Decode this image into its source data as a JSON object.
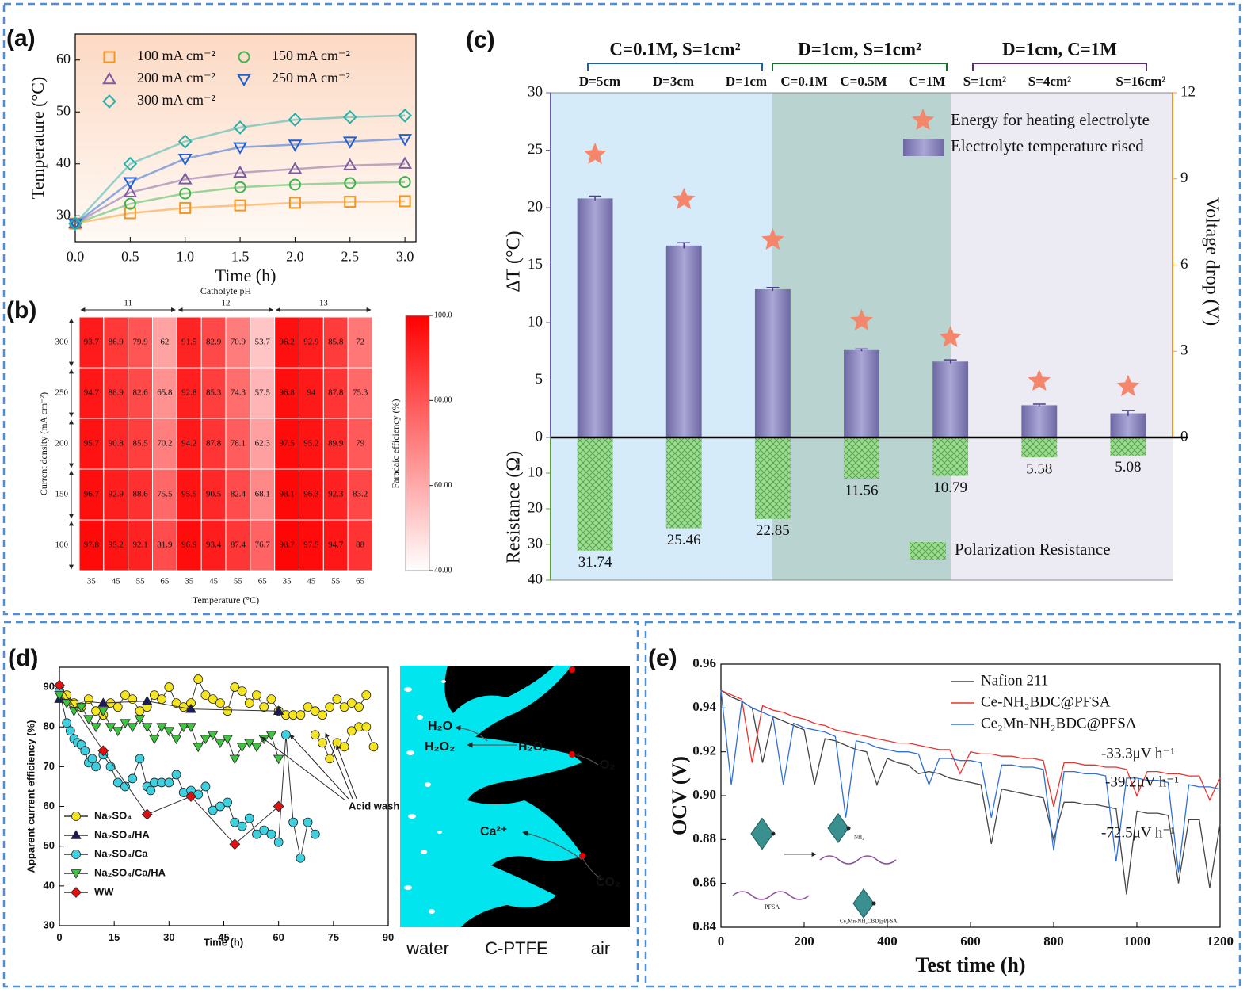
{
  "panel_labels": [
    "(a)",
    "(b)",
    "(c)",
    "(d)",
    "(e)"
  ],
  "chart_data": [
    {
      "type": "line",
      "xlabel": "Time (h)",
      "ylabel": "Temperature (°C)",
      "x": [
        0,
        0.5,
        1,
        1.5,
        2,
        2.5,
        3
      ],
      "xlim": [
        0,
        3.1
      ],
      "xticks": [
        {
          "value": 0,
          "label": "0.0"
        },
        0.5,
        {
          "value": 1,
          "label": "1.0"
        },
        1.5,
        {
          "value": 2,
          "label": "2.0"
        },
        2.5,
        {
          "value": 3,
          "label": "3.0"
        }
      ],
      "ylim": [
        25,
        65
      ],
      "yticks": [
        30,
        40,
        50,
        60
      ],
      "legend": "upper left",
      "series": [
        {
          "name": "100 mA cm⁻²",
          "color": "#f7941d",
          "marker": "square",
          "values": [
            28.5,
            30.5,
            31.5,
            32,
            32.5,
            32.7,
            32.8
          ]
        },
        {
          "name": "150 mA cm⁻²",
          "color": "#3cb44b",
          "marker": "circle",
          "values": [
            28.5,
            32.3,
            34.3,
            35.5,
            36,
            36.3,
            36.5
          ]
        },
        {
          "name": "200 mA cm⁻²",
          "color": "#7b5c9e",
          "marker": "triangle",
          "values": [
            28.5,
            34.5,
            37,
            38.3,
            39,
            39.7,
            40
          ]
        },
        {
          "name": "250 mA cm⁻²",
          "color": "#1f5fd1",
          "marker": "triangle-down",
          "values": [
            28.5,
            36.5,
            41,
            43.2,
            43.7,
            44.3,
            44.8
          ]
        },
        {
          "name": "300 mA cm⁻²",
          "color": "#2ab0a8",
          "marker": "diamond",
          "values": [
            28.5,
            40,
            44.3,
            47,
            48.5,
            49,
            49.3
          ]
        }
      ]
    },
    {
      "type": "heatmap",
      "title": "Catholyte pH",
      "xlabel": "Temperature (°C)",
      "ylabel": "Current density (mA cm⁻²)",
      "zlabel": "Faradaic efficiency (%)",
      "groups": [
        "11",
        "12",
        "13"
      ],
      "categories": [
        35,
        45,
        55,
        65,
        35,
        45,
        55,
        65,
        35,
        45,
        55,
        65
      ],
      "rows": [
        300,
        250,
        200,
        150,
        100
      ],
      "values": [
        [
          93.7,
          86.9,
          79.9,
          62,
          91.5,
          82.9,
          70.9,
          53.7,
          96.2,
          92.9,
          85.8,
          72
        ],
        [
          94.7,
          88.9,
          82.6,
          65.8,
          92.8,
          85.3,
          74.3,
          57.5,
          96.8,
          94,
          87.8,
          75.3
        ],
        [
          95.7,
          90.8,
          85.5,
          70.2,
          94.2,
          87.8,
          78.1,
          62.3,
          97.5,
          95.2,
          89.9,
          79
        ],
        [
          96.7,
          92.9,
          88.6,
          75.5,
          95.5,
          90.5,
          82.4,
          68.1,
          98.1,
          96.3,
          92.3,
          83.2
        ],
        [
          97.8,
          95.2,
          92.1,
          81.9,
          96.9,
          93.4,
          87.4,
          76.7,
          98.7,
          97.5,
          94.7,
          88
        ]
      ],
      "zlim": [
        40,
        100
      ],
      "zticks": [
        {
          "value": 40,
          "label": "40.00"
        },
        {
          "value": 60,
          "label": "60.00"
        },
        {
          "value": 80,
          "label": "80.00"
        },
        {
          "value": 100,
          "label": "100.0"
        }
      ],
      "colormap": [
        "#ffffff",
        "#ff0000"
      ]
    },
    {
      "type": "bar",
      "ylabel": "ΔT (°C)",
      "y2label": "Voltage drop (V)",
      "y3label": "Resistance (Ω)",
      "groups": [
        {
          "label": "C=0.1M, S=1cm²",
          "color": "#1f5fa8"
        },
        {
          "label": "D=1cm, S=1cm²",
          "color": "#1a6b2e"
        },
        {
          "label": "D=1cm, C=1M",
          "color": "#5a2d6e"
        }
      ],
      "column_labels": [
        "D=5cm",
        "D=3cm",
        "D=1cm",
        "C=0.1M",
        "C=0.5M",
        "C=1M",
        "S=1cm²",
        "S=4cm²",
        "S=16cm²"
      ],
      "ylim": [
        0,
        30
      ],
      "yticks": [
        0,
        5,
        10,
        15,
        20,
        25,
        30
      ],
      "y2lim": [
        0,
        12
      ],
      "y2ticks": [
        0,
        3,
        6,
        9,
        12
      ],
      "y3lim": [
        0,
        40
      ],
      "y3ticks": [
        10,
        20,
        30,
        40
      ],
      "series": [
        {
          "name": "Energy for heating electrolyte",
          "color": "#f4876b",
          "marker": "star",
          "axis": "y2",
          "values": [
            9.85,
            8.28,
            6.87,
            4.06,
            3.48,
            1.96,
            1.77
          ]
        },
        {
          "name": "Electrolyte temperature rised",
          "color": "#8b87b8",
          "values": [
            20.8,
            16.7,
            12.9,
            7.6,
            6.6,
            2.8,
            2.1
          ],
          "errors": [
            0.2,
            0.25,
            0.15,
            0.1,
            0.15,
            0.1,
            0.25
          ]
        },
        {
          "name": "Polarization Resistance",
          "color": "#8fd18f",
          "axis": "y3",
          "values": [
            31.74,
            25.46,
            22.85,
            11.56,
            10.79,
            5.58,
            5.08
          ]
        }
      ]
    },
    {
      "type": "line",
      "xlabel": "Time (h)",
      "ylabel": "Apparent current efficiency (%)",
      "xlim": [
        0,
        90
      ],
      "xticks": [
        0,
        15,
        30,
        45,
        60,
        75,
        90
      ],
      "ylim": [
        30,
        95
      ],
      "yticks": [
        30,
        40,
        50,
        60,
        70,
        80,
        90
      ],
      "legend": "lower left",
      "annotation": "Acid wash",
      "series": [
        {
          "name": "Na₂SO₄",
          "color": "#f5e520",
          "line_color": "#333333",
          "marker": "circle",
          "x": [
            0,
            2,
            4,
            6,
            8,
            10,
            12,
            14,
            16,
            18,
            20,
            22,
            24,
            26,
            28,
            30,
            32,
            34,
            36,
            38,
            40,
            42,
            44,
            46,
            48,
            50,
            52,
            54,
            56,
            58,
            60,
            62,
            64,
            66,
            68,
            70,
            72,
            74,
            76,
            78,
            80,
            82,
            84,
            null,
            70,
            72,
            74,
            76,
            78,
            80,
            82,
            84,
            86
          ],
          "values": [
            89,
            88,
            86,
            85,
            87,
            84,
            83,
            86,
            85,
            88,
            87,
            84,
            85,
            88,
            87,
            90,
            86,
            85,
            86,
            92,
            88,
            87,
            86,
            84,
            90,
            89,
            86,
            88,
            85,
            87,
            84,
            83,
            83,
            83,
            85,
            84,
            83,
            85,
            87,
            85,
            86,
            85,
            88,
            null,
            78,
            76,
            72,
            76,
            75,
            79,
            80,
            80,
            75
          ]
        },
        {
          "name": "Na₂SO₄/HA",
          "color": "#1a1a5e",
          "line_color": "#333333",
          "marker": "triangle",
          "x": [
            0,
            12,
            24,
            36,
            60
          ],
          "values": [
            87,
            86,
            86.5,
            84.5,
            84
          ]
        },
        {
          "name": "Na₂SO₄/Ca",
          "color": "#3fd0e0",
          "line_color": "#333333",
          "marker": "circle",
          "x": [
            0,
            2,
            3,
            4,
            5,
            6,
            7,
            8,
            9,
            10,
            12,
            14,
            16,
            18,
            20,
            22,
            24,
            25,
            26,
            28,
            30,
            32,
            34,
            36,
            38,
            40,
            42,
            44,
            46,
            48,
            50,
            52,
            54,
            56,
            58,
            60,
            62,
            64,
            66,
            68,
            70
          ],
          "values": [
            89,
            81,
            79,
            77,
            76,
            75.5,
            74,
            71,
            72,
            70,
            73,
            70,
            66,
            65,
            67,
            72,
            65,
            64,
            66,
            66,
            66,
            68,
            63.5,
            64,
            63,
            65,
            59,
            60,
            61,
            56,
            55,
            57,
            53,
            54,
            53,
            51,
            78,
            56,
            47,
            56,
            53
          ]
        },
        {
          "name": "Na₂SO₄/Ca/HA",
          "color": "#3ec43e",
          "line_color": "#333333",
          "marker": "triangle-down",
          "x": [
            0,
            2,
            4,
            6,
            8,
            10,
            12,
            14,
            16,
            18,
            20,
            22,
            24,
            26,
            28,
            30,
            32,
            34,
            36,
            38,
            40,
            42,
            44,
            46,
            48,
            50,
            52,
            54,
            56,
            58,
            60
          ],
          "values": [
            88,
            86,
            84,
            85,
            82,
            80,
            84,
            80,
            79,
            81,
            80,
            82,
            80,
            77,
            80,
            79,
            77,
            80,
            80,
            75,
            77,
            78,
            76,
            77,
            72,
            75,
            76,
            75,
            77,
            78,
            72
          ]
        },
        {
          "name": "WW",
          "color": "#e01010",
          "line_color": "#333333",
          "marker": "diamond",
          "x": [
            0,
            12,
            24,
            36,
            48,
            60
          ],
          "values": [
            90.5,
            74,
            58,
            62.5,
            50.5,
            60
          ]
        }
      ],
      "illustration": {
        "left": "water",
        "middle": "C-PTFE",
        "right": "air",
        "species": [
          "H₂O",
          "H₂O₂",
          "H₂O₂",
          "O₂",
          "Ca²⁺",
          "CO₂"
        ]
      }
    },
    {
      "type": "line",
      "xlabel": "Test time (h)",
      "ylabel": "OCV (V)",
      "x": [
        0,
        25,
        50,
        75,
        100,
        125,
        150,
        175,
        200,
        225,
        250,
        275,
        300,
        325,
        350,
        375,
        400,
        425,
        450,
        475,
        500,
        525,
        550,
        575,
        600,
        625,
        650,
        675,
        700,
        725,
        750,
        775,
        800,
        825,
        850,
        875,
        900,
        925,
        950,
        975,
        1000,
        1025,
        1050,
        1075,
        1100,
        1125,
        1150,
        1175,
        1200
      ],
      "xlim": [
        0,
        1200
      ],
      "xticks": [
        0,
        200,
        400,
        600,
        800,
        1000,
        1200
      ],
      "ylim": [
        0.84,
        0.96
      ],
      "yticks": [
        0.84,
        0.86,
        0.88,
        {
          "value": 0.9,
          "label": "0.90"
        },
        0.92,
        0.94,
        0.96
      ],
      "legend": "upper right",
      "annotations": [
        "-33.3μV h⁻¹",
        "-39.2μV h⁻¹",
        "-72.5μV h⁻¹"
      ],
      "inset_labels": [
        "NH₂",
        "PFSA",
        "Ce₂Mn-NH₂CBD@PFSA"
      ],
      "series": [
        {
          "name": "Nafion 211",
          "color": "#444444",
          "values": [
            0.948,
            0.945,
            0.943,
            0.94,
            0.915,
            0.936,
            0.934,
            0.932,
            0.93,
            0.905,
            0.926,
            0.925,
            0.923,
            0.921,
            0.92,
            0.905,
            0.917,
            0.915,
            0.914,
            0.91,
            0.911,
            0.91,
            0.908,
            0.907,
            0.906,
            0.905,
            0.878,
            0.903,
            0.902,
            0.901,
            0.9,
            0.899,
            0.88,
            0.897,
            0.897,
            0.896,
            0.896,
            0.895,
            0.894,
            0.855,
            0.893,
            0.892,
            0.892,
            0.891,
            0.86,
            0.889,
            0.889,
            0.858,
            0.887
          ]
        },
        {
          "name": "Ce-NH₂BDC@PFSA",
          "color": "#e8332e",
          "values": [
            0.948,
            0.946,
            0.944,
            0.915,
            0.941,
            0.939,
            0.938,
            0.936,
            0.935,
            0.933,
            0.932,
            0.93,
            0.929,
            0.928,
            0.927,
            0.926,
            0.925,
            0.924,
            0.924,
            0.923,
            0.922,
            0.921,
            0.921,
            0.91,
            0.92,
            0.919,
            0.919,
            0.918,
            0.918,
            0.917,
            0.917,
            0.916,
            0.895,
            0.915,
            0.915,
            0.914,
            0.914,
            0.913,
            0.913,
            0.912,
            0.9,
            0.911,
            0.911,
            0.91,
            0.91,
            0.909,
            0.909,
            0.898,
            0.908
          ]
        },
        {
          "name": "Ce₂Mn-NH₂BDC@PFSA",
          "color": "#2f6fd6",
          "values": [
            0.948,
            0.905,
            0.943,
            0.94,
            0.938,
            0.936,
            0.905,
            0.933,
            0.931,
            0.93,
            0.929,
            0.927,
            0.89,
            0.925,
            0.924,
            0.922,
            0.921,
            0.92,
            0.92,
            0.919,
            0.905,
            0.917,
            0.917,
            0.916,
            0.916,
            0.915,
            0.89,
            0.914,
            0.914,
            0.913,
            0.913,
            0.912,
            0.875,
            0.911,
            0.911,
            0.91,
            0.91,
            0.909,
            0.87,
            0.908,
            0.908,
            0.907,
            0.907,
            0.906,
            0.865,
            0.905,
            0.904,
            0.904,
            0.903
          ]
        }
      ]
    }
  ]
}
